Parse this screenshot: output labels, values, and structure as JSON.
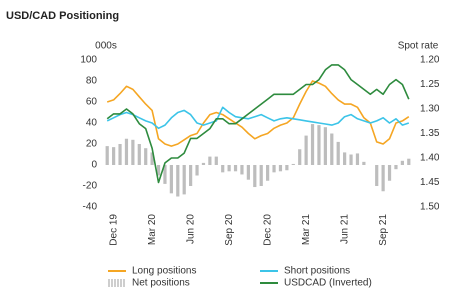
{
  "chart_data": {
    "type": "line",
    "title": "USD/CAD Positioning",
    "y_label": "000s",
    "y2_label": "Spot rate",
    "categories": [
      null,
      "Dec 19",
      null,
      null,
      null,
      null,
      null,
      "Mar 20",
      null,
      null,
      null,
      null,
      null,
      "Jun 20",
      null,
      null,
      null,
      null,
      null,
      "Sep 20",
      null,
      null,
      null,
      null,
      null,
      "Dec 20",
      null,
      null,
      null,
      null,
      null,
      "Mar 21",
      null,
      null,
      null,
      null,
      null,
      "Jun 21",
      null,
      null,
      null,
      null,
      null,
      "Sep 21",
      null,
      null,
      null,
      null
    ],
    "ylim": [
      -40,
      100
    ],
    "yticks": [
      -40,
      -20,
      0,
      20,
      40,
      60,
      80,
      100
    ],
    "y2lim": [
      1.2,
      1.5
    ],
    "y2_inverted": true,
    "y2ticks": [
      {
        "value": 1.2,
        "label": "1.20"
      },
      {
        "value": 1.25,
        "label": "1.25"
      },
      {
        "value": 1.3,
        "label": "1.30"
      },
      {
        "value": 1.35,
        "label": "1.35"
      },
      {
        "value": 1.4,
        "label": "1.40"
      },
      {
        "value": 1.45,
        "label": "1.45"
      },
      {
        "value": 1.5,
        "label": "1.50"
      }
    ],
    "series": [
      {
        "name": "Long positions",
        "type": "line",
        "color": "#f5a623",
        "values": [
          60,
          62,
          68,
          75,
          72,
          65,
          58,
          52,
          25,
          20,
          18,
          20,
          24,
          28,
          30,
          40,
          48,
          50,
          48,
          44,
          40,
          36,
          30,
          25,
          28,
          30,
          35,
          38,
          40,
          45,
          58,
          70,
          80,
          78,
          75,
          68,
          62,
          58,
          58,
          55,
          45,
          40,
          22,
          20,
          25,
          40,
          42,
          46
        ]
      },
      {
        "name": "Short positions",
        "type": "line",
        "color": "#3cc4e8",
        "values": [
          42,
          45,
          48,
          50,
          48,
          45,
          42,
          40,
          35,
          38,
          45,
          50,
          52,
          48,
          40,
          38,
          40,
          42,
          55,
          50,
          46,
          45,
          44,
          46,
          48,
          45,
          42,
          44,
          45,
          44,
          43,
          42,
          41,
          40,
          39,
          38,
          40,
          46,
          48,
          44,
          42,
          40,
          42,
          45,
          40,
          44,
          38,
          40
        ]
      },
      {
        "name": "Net positions",
        "type": "bar",
        "color": "#bdbdbd",
        "values": [
          18,
          17,
          20,
          25,
          24,
          20,
          16,
          12,
          -10,
          -18,
          -27,
          -30,
          -28,
          -20,
          -10,
          2,
          8,
          8,
          -7,
          -6,
          -6,
          -9,
          -14,
          -21,
          -20,
          -15,
          -7,
          -6,
          -5,
          1,
          15,
          28,
          39,
          38,
          36,
          30,
          22,
          12,
          10,
          11,
          3,
          0,
          -20,
          -25,
          -15,
          -4,
          4,
          6
        ]
      },
      {
        "name": "USDCAD (Inverted)",
        "type": "line",
        "color": "#2e8b3e",
        "axis": "y2",
        "values": [
          1.32,
          1.31,
          1.31,
          1.3,
          1.31,
          1.33,
          1.34,
          1.38,
          1.45,
          1.41,
          1.4,
          1.4,
          1.39,
          1.36,
          1.36,
          1.35,
          1.34,
          1.32,
          1.32,
          1.33,
          1.33,
          1.32,
          1.31,
          1.3,
          1.29,
          1.28,
          1.27,
          1.27,
          1.27,
          1.27,
          1.26,
          1.25,
          1.25,
          1.24,
          1.22,
          1.21,
          1.21,
          1.22,
          1.24,
          1.25,
          1.26,
          1.27,
          1.26,
          1.27,
          1.25,
          1.24,
          1.25,
          1.28
        ]
      }
    ]
  }
}
